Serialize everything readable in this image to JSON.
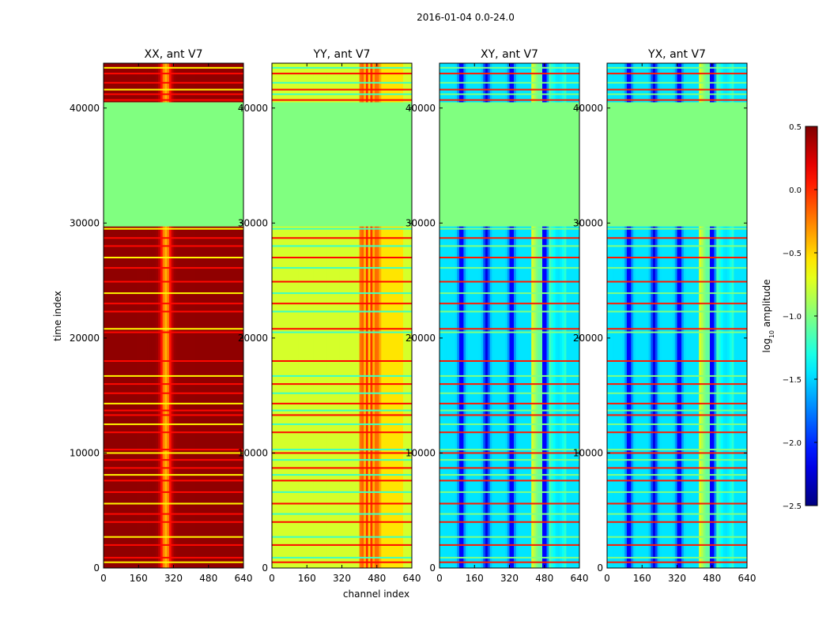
{
  "figure": {
    "suptitle": "2016-01-04 0.0-24.0"
  },
  "chart_data": {
    "type": "heatmap",
    "xlabel": "channel index",
    "ylabel": "time index",
    "xlim": [
      0,
      640
    ],
    "ylim": [
      0,
      43900
    ],
    "x_ticks": [
      0,
      160,
      320,
      480,
      640
    ],
    "y_ticks": [
      0,
      10000,
      20000,
      30000,
      40000
    ],
    "panels": [
      {
        "title": "XX, ant V7",
        "kind": "xx",
        "base_log_amp": 0.45
      },
      {
        "title": "YY, ant V7",
        "kind": "yy",
        "base_log_amp": -0.65
      },
      {
        "title": "XY, ant V7",
        "kind": "cross",
        "base_log_amp": -1.55
      },
      {
        "title": "YX, ant V7",
        "kind": "cross",
        "base_log_amp": -1.55
      }
    ],
    "colorbar": {
      "label_prefix": "log",
      "label_sub": "10",
      "label_suffix": " amplitude",
      "range": [
        -2.5,
        0.5
      ],
      "ticks": [
        "0.5",
        "0.0",
        "−0.5",
        "−1.0",
        "−1.5",
        "−2.0",
        "−2.5"
      ],
      "tick_values": [
        0.5,
        0.0,
        -0.5,
        -1.0,
        -1.5,
        -2.0,
        -2.5
      ]
    },
    "flagged_time_range": [
      29700,
      40500
    ],
    "flagged_log_amp": -1.0,
    "flag_rows": [
      500,
      900,
      2000,
      2700,
      4000,
      4700,
      5600,
      6600,
      7600,
      8100,
      8700,
      9400,
      10000,
      10300,
      11800,
      12500,
      13300,
      13700,
      14300,
      15200,
      16000,
      16700,
      18000,
      20500,
      20800,
      22300,
      23000,
      23900,
      24900,
      26100,
      27000,
      28000,
      28700,
      29500,
      40700,
      41200,
      41600,
      42200,
      43000,
      43500
    ]
  }
}
